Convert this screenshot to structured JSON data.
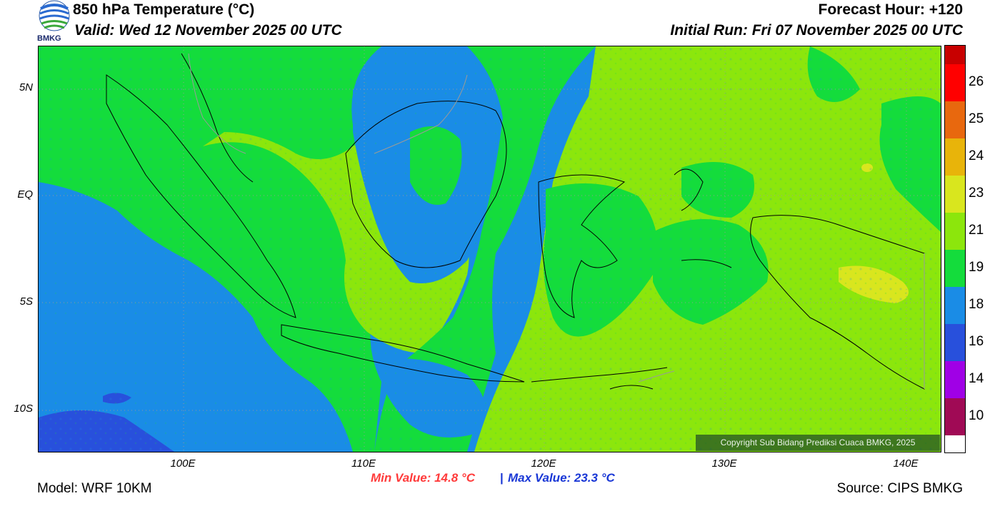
{
  "header": {
    "title": "850 hPa Temperature (°C)",
    "valid": "Valid: Wed 12 November 2025 00 UTC",
    "forecast_hour": "Forecast Hour: +120",
    "initial_run": "Initial Run: Fri 07 November 2025 00 UTC"
  },
  "logo": {
    "text": "BMKG",
    "icon": "bmkg-logo-icon"
  },
  "axes": {
    "lat_labels": [
      "5N",
      "EQ",
      "5S",
      "10S"
    ],
    "lon_labels": [
      "100E",
      "110E",
      "120E",
      "130E",
      "140E"
    ]
  },
  "colorbar": {
    "labels": [
      "26",
      "25",
      "24",
      "23",
      "21",
      "19",
      "18",
      "16",
      "14",
      "10"
    ],
    "colors": [
      "#c80000",
      "#ff0000",
      "#e8680e",
      "#e8b40a",
      "#d9e61e",
      "#8ce60c",
      "#14dc3c",
      "#1a8ce6",
      "#2850dc",
      "#a000e6",
      "#a00a55"
    ]
  },
  "map_colors": {
    "blue": "#1a8ce6",
    "deep_blue": "#2850dc",
    "green": "#14dc3c",
    "lime": "#8ce60c",
    "yellow": "#d9e61e"
  },
  "copyright": "Copyright Sub Bidang Prediksi Cuaca BMKG, 2025",
  "stats": {
    "min": "Min Value: 14.8 °C",
    "separator": "|",
    "max": "Max Value: 23.3 °C"
  },
  "footer": {
    "model": "Model: WRF 10KM",
    "source": "Source: CIPS BMKG"
  }
}
